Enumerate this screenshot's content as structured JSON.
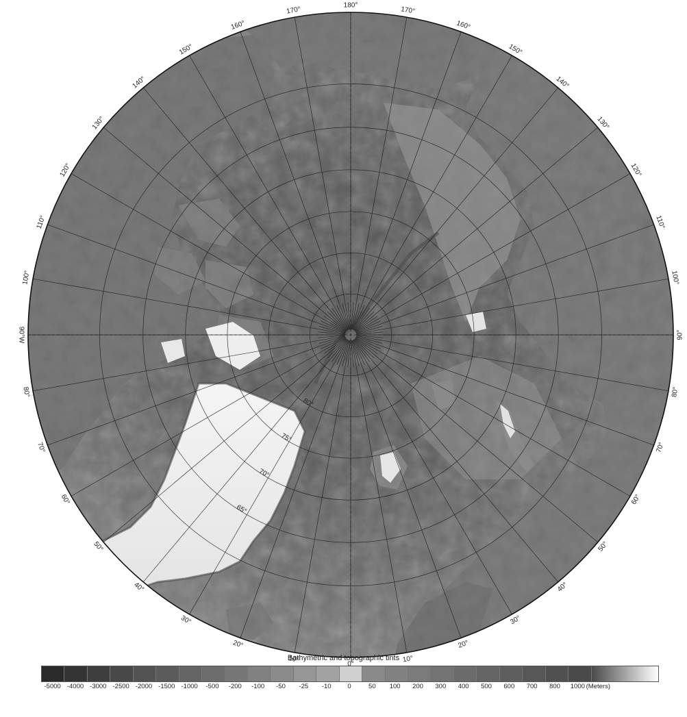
{
  "map": {
    "projection": "north polar stereographic",
    "colors": {
      "ocean_deep": "#595959",
      "ocean_mid": "#6e6e6e",
      "ocean_shelf": "#8c8c8c",
      "land": "#777777",
      "ice": "#f2f2f2",
      "graticule": "#1a1a1a"
    },
    "longitude_labels": [
      {
        "text": "180°",
        "lon": 180
      },
      {
        "text": "170°",
        "lon": 170
      },
      {
        "text": "170°",
        "lon": -170
      },
      {
        "text": "160°",
        "lon": 160
      },
      {
        "text": "150°",
        "lon": 150
      },
      {
        "text": "150°",
        "lon": -150
      },
      {
        "text": "160°",
        "lon": -160
      },
      {
        "text": "140°",
        "lon": 140
      },
      {
        "text": "140°",
        "lon": -140
      },
      {
        "text": "130°",
        "lon": 130
      },
      {
        "text": "130°",
        "lon": -130
      },
      {
        "text": "120°",
        "lon": 120
      },
      {
        "text": "120°",
        "lon": -120
      },
      {
        "text": "110°",
        "lon": 110
      },
      {
        "text": "110°",
        "lon": -110
      },
      {
        "text": "100°",
        "lon": 100
      },
      {
        "text": "100°",
        "lon": -100
      },
      {
        "text": "90°W",
        "lon": -90
      },
      {
        "text": "90°",
        "lon": 90
      },
      {
        "text": "80°",
        "lon": 80
      },
      {
        "text": "80°",
        "lon": -80
      },
      {
        "text": "70°",
        "lon": 70
      },
      {
        "text": "70°",
        "lon": -70
      },
      {
        "text": "60°",
        "lon": 60
      },
      {
        "text": "60°",
        "lon": -60
      },
      {
        "text": "50°",
        "lon": 50
      },
      {
        "text": "50°",
        "lon": -50
      },
      {
        "text": "40°",
        "lon": 40
      },
      {
        "text": "40°",
        "lon": -40
      },
      {
        "text": "30°",
        "lon": 30
      },
      {
        "text": "30°",
        "lon": -30
      },
      {
        "text": "20°",
        "lon": 20
      },
      {
        "text": "20°",
        "lon": -20
      },
      {
        "text": "10°",
        "lon": 10
      },
      {
        "text": "10°",
        "lon": -10
      },
      {
        "text": "0°",
        "lon": 0
      }
    ],
    "latitude_labels": [
      {
        "text": "80°",
        "lat": 80
      },
      {
        "text": "75°",
        "lat": 75
      },
      {
        "text": "70°",
        "lat": 70
      },
      {
        "text": "65°",
        "lat": 65
      }
    ],
    "graticule": {
      "parallels_deg": [
        85,
        80,
        75,
        70,
        65,
        60
      ],
      "meridian_step_deg": 10
    }
  },
  "legend": {
    "title": "Bathymetric and topographic tints",
    "unit": "(Meters)",
    "classes": [
      {
        "label": "-5000",
        "color": "#2a2a2a"
      },
      {
        "label": "-4000",
        "color": "#343434"
      },
      {
        "label": "-3000",
        "color": "#3e3e3e"
      },
      {
        "label": "-2500",
        "color": "#484848"
      },
      {
        "label": "-2000",
        "color": "#525252"
      },
      {
        "label": "-1500",
        "color": "#5b5b5b"
      },
      {
        "label": "-1000",
        "color": "#646464"
      },
      {
        "label": "-500",
        "color": "#6d6d6d"
      },
      {
        "label": "-200",
        "color": "#777777"
      },
      {
        "label": "-100",
        "color": "#818181"
      },
      {
        "label": "-50",
        "color": "#8b8b8b"
      },
      {
        "label": "-25",
        "color": "#969696"
      },
      {
        "label": "-10",
        "color": "#a2a2a2"
      },
      {
        "label": "0",
        "color": "#d0d0d0"
      },
      {
        "label": "50",
        "color": "#8a8a8a"
      },
      {
        "label": "100",
        "color": "#828282"
      },
      {
        "label": "200",
        "color": "#7a7a7a"
      },
      {
        "label": "300",
        "color": "#737373"
      },
      {
        "label": "400",
        "color": "#6c6c6c"
      },
      {
        "label": "500",
        "color": "#656565"
      },
      {
        "label": "600",
        "color": "#5e5e5e"
      },
      {
        "label": "700",
        "color": "#575757"
      },
      {
        "label": "800",
        "color": "#505050"
      },
      {
        "label": "1000",
        "color": "#4a4a4a"
      }
    ],
    "high_gradient": {
      "from": "#4a4a4a",
      "to": "#ffffff"
    }
  }
}
